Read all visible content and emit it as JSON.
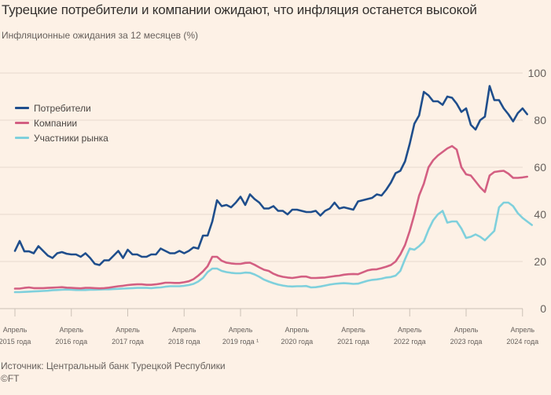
{
  "chart_data": {
    "type": "line",
    "title": "Турецкие потребители и компании ожидают, что инфляция останется высокой",
    "subtitle": "Инфляционные ожидания за 12 месяцев (%)",
    "xlabel": "",
    "ylabel": "",
    "ylim": [
      0,
      100
    ],
    "yticks": [
      0,
      20,
      40,
      60,
      80,
      100
    ],
    "grid": true,
    "legend_position": "top-left",
    "x_start": "2015-04",
    "x_frequency": "monthly",
    "x_ticks": [
      {
        "line1": "Апрель",
        "line2": "2015 года"
      },
      {
        "line1": "Апрель",
        "line2": "2016 года"
      },
      {
        "line1": "Апрель",
        "line2": "2017 года"
      },
      {
        "line1": "Апрель",
        "line2": "2018 года"
      },
      {
        "line1": "Апрель",
        "line2": "2019 года ¹"
      },
      {
        "line1": "Апрель",
        "line2": "2020 года"
      },
      {
        "line1": "Апрель",
        "line2": "2021 года"
      },
      {
        "line1": "Апрель",
        "line2": "2022 года"
      },
      {
        "line1": "Апрель",
        "line2": "2023 года"
      },
      {
        "line1": "Апрель",
        "line2": "2024 года"
      }
    ],
    "series": [
      {
        "name": "Потребители",
        "color": "#1f4e8c",
        "values": [
          24.5,
          28.7,
          24.3,
          24.3,
          23.5,
          26.5,
          24.5,
          22.5,
          21.5,
          23.5,
          24.0,
          23.3,
          23.0,
          23.0,
          22.0,
          23.5,
          21.5,
          19.0,
          18.5,
          20.5,
          20.5,
          22.5,
          24.5,
          21.5,
          25.0,
          23.0,
          23.0,
          22.0,
          22.0,
          23.0,
          23.0,
          25.5,
          24.5,
          23.5,
          23.5,
          24.5,
          23.5,
          24.5,
          26.0,
          25.5,
          31.0,
          31.0,
          37.0,
          46.0,
          43.5,
          44.0,
          43.0,
          45.0,
          47.5,
          44.0,
          48.5,
          46.5,
          45.0,
          42.5,
          42.5,
          43.5,
          41.5,
          41.5,
          40.0,
          42.0,
          42.0,
          41.5,
          41.0,
          41.0,
          41.5,
          39.5,
          41.5,
          42.5,
          45.0,
          42.5,
          43.0,
          42.5,
          42.0,
          45.5,
          46.0,
          46.5,
          47.0,
          48.5,
          48.0,
          50.5,
          53.5,
          57.5,
          58.5,
          62.5,
          70.0,
          78.5,
          82.0,
          92.0,
          90.5,
          88.0,
          88.0,
          86.5,
          90.0,
          89.5,
          87.0,
          83.5,
          85.0,
          78.0,
          76.0,
          80.0,
          81.5,
          94.5,
          88.5,
          88.5,
          85.0,
          82.5,
          79.5,
          83.0,
          85.0,
          82.5
        ]
      },
      {
        "name": "Компании",
        "color": "#d35f82",
        "values": [
          8.5,
          8.5,
          8.8,
          9.0,
          8.7,
          8.7,
          8.7,
          8.8,
          8.9,
          9.0,
          9.1,
          8.9,
          8.8,
          8.7,
          8.6,
          8.8,
          8.8,
          8.7,
          8.6,
          8.7,
          8.9,
          9.2,
          9.5,
          9.7,
          10.0,
          10.2,
          10.3,
          10.3,
          10.1,
          10.1,
          10.3,
          10.6,
          11.0,
          11.0,
          10.9,
          10.9,
          11.2,
          11.6,
          12.5,
          14.0,
          15.8,
          18.0,
          22.0,
          22.0,
          20.3,
          19.5,
          19.2,
          19.0,
          19.0,
          19.4,
          19.5,
          18.6,
          17.5,
          16.5,
          16.0,
          14.8,
          14.0,
          13.5,
          13.2,
          13.0,
          13.3,
          13.6,
          13.6,
          13.0,
          13.0,
          13.1,
          13.2,
          13.5,
          13.8,
          14.0,
          14.4,
          14.6,
          14.7,
          14.6,
          15.4,
          16.2,
          16.6,
          16.7,
          17.2,
          17.8,
          18.5,
          20.0,
          23.0,
          27.0,
          33.0,
          40.0,
          48.0,
          53.0,
          60.0,
          63.0,
          65.0,
          66.5,
          68.0,
          69.0,
          67.5,
          60.0,
          57.0,
          56.5,
          54.0,
          51.5,
          49.5,
          56.5,
          58.0,
          58.3,
          58.5,
          57.3,
          55.5,
          55.5,
          55.7,
          56.0
        ]
      },
      {
        "name": "Участники рынка",
        "color": "#7fd0dc",
        "values": [
          7.0,
          7.0,
          7.1,
          7.2,
          7.3,
          7.4,
          7.5,
          7.6,
          7.8,
          7.9,
          8.0,
          8.1,
          8.0,
          7.9,
          7.9,
          7.9,
          8.0,
          8.0,
          8.1,
          8.2,
          8.2,
          8.3,
          8.4,
          8.5,
          8.6,
          8.7,
          8.8,
          8.8,
          8.8,
          8.7,
          8.9,
          9.0,
          9.3,
          9.5,
          9.5,
          9.5,
          9.7,
          10.0,
          10.5,
          11.5,
          13.0,
          15.5,
          17.0,
          17.0,
          16.0,
          15.5,
          15.2,
          15.0,
          15.0,
          15.3,
          15.2,
          14.5,
          13.5,
          12.3,
          11.5,
          10.8,
          10.2,
          9.8,
          9.5,
          9.4,
          9.5,
          9.5,
          9.6,
          9.0,
          9.1,
          9.4,
          9.8,
          10.2,
          10.5,
          10.7,
          10.8,
          10.7,
          10.5,
          10.6,
          11.2,
          11.8,
          12.2,
          12.4,
          12.7,
          13.2,
          13.4,
          14.0,
          16.0,
          21.0,
          25.5,
          25.0,
          26.5,
          28.5,
          33.5,
          37.5,
          40.0,
          41.5,
          36.5,
          37.0,
          37.0,
          34.0,
          30.0,
          30.5,
          31.5,
          30.5,
          29.0,
          31.0,
          33.0,
          43.0,
          45.0,
          45.0,
          43.5,
          40.5,
          38.5,
          37.0,
          35.5
        ]
      }
    ]
  },
  "source": "Источник: Центральный банк Турецкой Республики",
  "copyright": "©FT"
}
